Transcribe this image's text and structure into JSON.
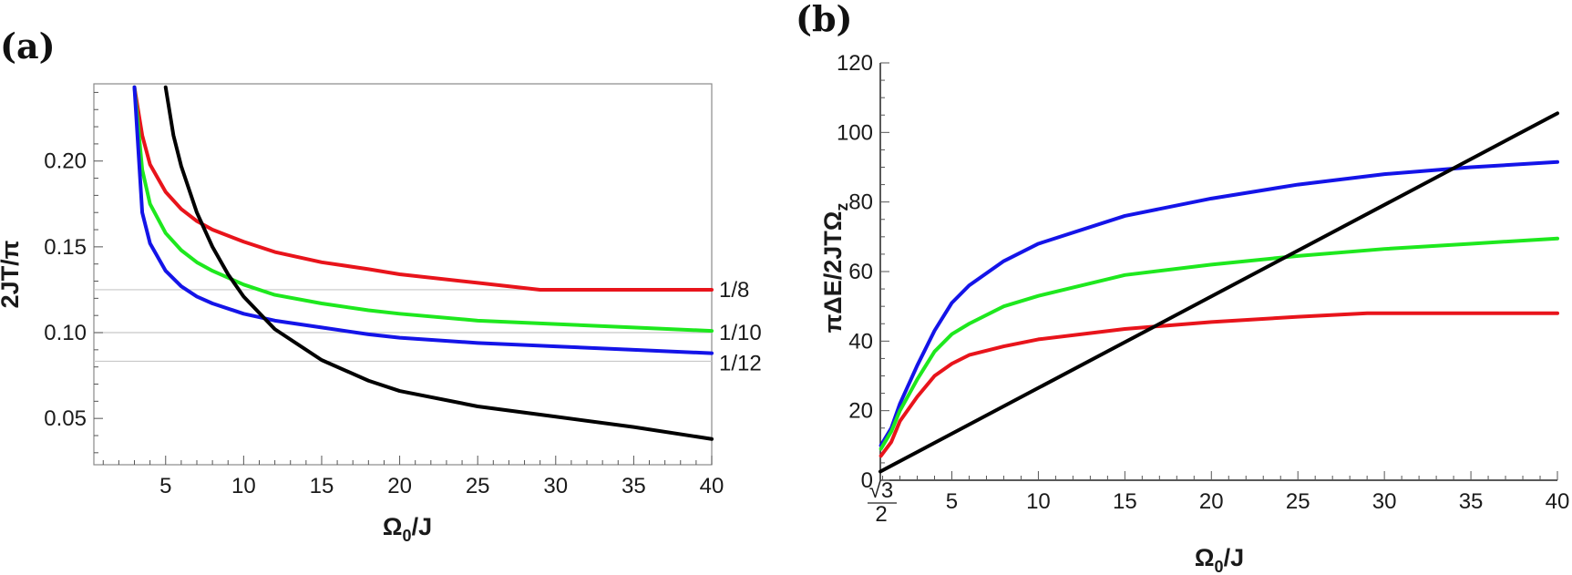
{
  "chart_data": [
    {
      "panel_label": "(a)",
      "type": "line",
      "xlabel": "Ω0/J",
      "xlabel_main": "Ω",
      "xlabel_sub": "0",
      "xlabel_tail": "/J",
      "ylabel": "2JT/π",
      "xlim": [
        0.4,
        40
      ],
      "ylim": [
        0.023,
        0.245
      ],
      "xticks": [
        5,
        10,
        15,
        20,
        25,
        30,
        35,
        40
      ],
      "xtick_labels": [
        "5",
        "10",
        "15",
        "20",
        "25",
        "30",
        "35",
        "40"
      ],
      "yticks": [
        0.05,
        0.1,
        0.15,
        0.2
      ],
      "ytick_labels": [
        "0.05",
        "0.10",
        "0.15",
        "0.20"
      ],
      "reference_lines": [
        {
          "y": 0.125,
          "label": "1/8"
        },
        {
          "y": 0.1,
          "label": "1/10"
        },
        {
          "y": 0.0833,
          "label": "1/12"
        }
      ],
      "series": [
        {
          "color": "#e8141b",
          "x": [
            3.0,
            3.5,
            4,
            5,
            6,
            7,
            8,
            10,
            12,
            15,
            18,
            20,
            25,
            29,
            30,
            35,
            40
          ],
          "y": [
            0.243,
            0.215,
            0.198,
            0.182,
            0.172,
            0.165,
            0.16,
            0.153,
            0.147,
            0.141,
            0.137,
            0.134,
            0.129,
            0.125,
            0.125,
            0.125,
            0.125
          ]
        },
        {
          "color": "#1ee81e",
          "x": [
            3.0,
            3.5,
            4,
            5,
            6,
            7,
            8,
            10,
            12,
            15,
            18,
            20,
            25,
            30,
            35,
            40
          ],
          "y": [
            0.243,
            0.195,
            0.175,
            0.158,
            0.148,
            0.141,
            0.136,
            0.128,
            0.122,
            0.117,
            0.113,
            0.111,
            0.107,
            0.105,
            0.103,
            0.101
          ]
        },
        {
          "color": "#1414e8",
          "x": [
            3.0,
            3.5,
            4,
            5,
            6,
            7,
            8,
            10,
            12,
            15,
            18,
            20,
            25,
            30,
            35,
            40
          ],
          "y": [
            0.243,
            0.17,
            0.152,
            0.136,
            0.127,
            0.121,
            0.117,
            0.111,
            0.107,
            0.103,
            0.099,
            0.097,
            0.094,
            0.092,
            0.09,
            0.088
          ]
        },
        {
          "color": "#000000",
          "x": [
            5.0,
            5.5,
            6,
            7,
            8,
            9,
            10,
            12,
            15,
            18,
            20,
            25,
            30,
            35,
            40
          ],
          "y": [
            0.243,
            0.215,
            0.197,
            0.17,
            0.15,
            0.134,
            0.121,
            0.102,
            0.084,
            0.072,
            0.066,
            0.057,
            0.051,
            0.045,
            0.038
          ]
        }
      ]
    },
    {
      "panel_label": "(b)",
      "type": "line",
      "xlabel": "Ω0/J",
      "xlabel_main": "Ω",
      "xlabel_sub": "0",
      "xlabel_tail": "/J",
      "ylabel": "πΔE/2JTΩz",
      "ylabel_main": "πΔE/2JTΩ",
      "ylabel_sub": "z",
      "xlim": [
        0.866,
        40
      ],
      "ylim": [
        0,
        120
      ],
      "xticks": [
        5,
        10,
        15,
        20,
        25,
        30,
        35,
        40
      ],
      "xtick_labels": [
        "5",
        "10",
        "15",
        "20",
        "25",
        "30",
        "35",
        "40"
      ],
      "x_start_label": "√3/2",
      "x_start_label_num": "√3",
      "x_start_label_den": "2",
      "yticks": [
        0,
        20,
        40,
        60,
        80,
        100,
        120
      ],
      "ytick_labels": [
        "0",
        "20",
        "40",
        "60",
        "80",
        "100",
        "120"
      ],
      "series": [
        {
          "color": "#1414e8",
          "x": [
            0.9,
            1.5,
            2,
            3,
            4,
            5,
            6,
            8,
            10,
            15,
            20,
            25,
            30,
            35,
            40
          ],
          "y": [
            10,
            15,
            22,
            33,
            43,
            51,
            56,
            63,
            68,
            76,
            81,
            85,
            88,
            90,
            91.5
          ]
        },
        {
          "color": "#1ee81e",
          "x": [
            0.9,
            1.5,
            2,
            3,
            4,
            5,
            6,
            8,
            10,
            15,
            20,
            25,
            30,
            35,
            40
          ],
          "y": [
            9,
            14,
            20,
            29,
            37,
            42,
            45,
            50,
            53,
            59,
            62,
            64.5,
            66.5,
            68,
            69.5
          ]
        },
        {
          "color": "#e8141b",
          "x": [
            0.9,
            1.5,
            2,
            3,
            4,
            5,
            6,
            8,
            10,
            15,
            20,
            25,
            29,
            30,
            35,
            40
          ],
          "y": [
            7,
            11,
            17,
            24,
            30,
            33.5,
            36,
            38.5,
            40.5,
            43.5,
            45.5,
            47,
            48,
            48,
            48,
            48
          ]
        },
        {
          "color": "#000000",
          "x": [
            0.866,
            40
          ],
          "y": [
            2.5,
            105.5
          ]
        }
      ]
    }
  ]
}
